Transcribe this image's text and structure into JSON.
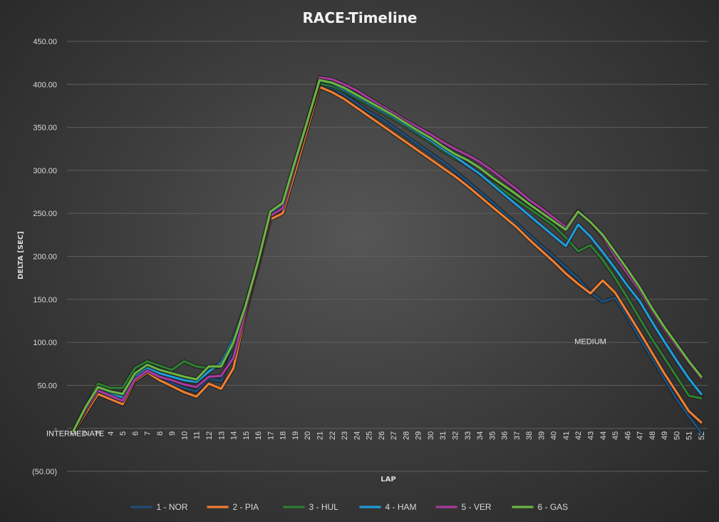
{
  "chart_data": {
    "type": "line",
    "title": "RACE-Timeline",
    "xlabel": "LAP",
    "ylabel": "DELTA [SEC]",
    "ylim": [
      -50,
      450
    ],
    "y_tick_labels": [
      "(50.00)",
      "-",
      "50.00",
      "100.00",
      "150.00",
      "200.00",
      "250.00",
      "300.00",
      "350.00",
      "400.00",
      "450.00"
    ],
    "categories": [
      "1",
      "2",
      "3",
      "4",
      "5",
      "6",
      "7",
      "8",
      "9",
      "10",
      "11",
      "12",
      "13",
      "14",
      "15",
      "16",
      "17",
      "18",
      "19",
      "20",
      "21",
      "22",
      "23",
      "24",
      "25",
      "26",
      "27",
      "28",
      "29",
      "30",
      "31",
      "32",
      "33",
      "34",
      "35",
      "36",
      "37",
      "38",
      "39",
      "40",
      "41",
      "42",
      "43",
      "44",
      "45",
      "46",
      "47",
      "48",
      "49",
      "50",
      "51",
      "52"
    ],
    "grid": true,
    "legend_position": "bottom",
    "annotations": [
      {
        "text": "INTERMEDIATE",
        "x": "1",
        "y": 0
      },
      {
        "text": "MEDIUM",
        "x": "43",
        "y": 160
      }
    ],
    "series": [
      {
        "name": "1 - NOR",
        "color": "#1f4e79",
        "values": [
          -5,
          18,
          40,
          35,
          28,
          55,
          65,
          58,
          52,
          47,
          43,
          58,
          55,
          92,
          140,
          192,
          248,
          256,
          302,
          350,
          399,
          396,
          388,
          378,
          368,
          360,
          350,
          340,
          330,
          320,
          310,
          299,
          287,
          275,
          263,
          250,
          238,
          225,
          212,
          200,
          187,
          174,
          158,
          147,
          152,
          130,
          105,
          82,
          58,
          34,
          14,
          -5
        ]
      },
      {
        "name": "2 - PIA",
        "color": "#ed7d31",
        "values": [
          -5,
          18,
          40,
          34,
          28,
          55,
          65,
          56,
          49,
          42,
          37,
          52,
          46,
          70,
          135,
          188,
          243,
          250,
          298,
          348,
          397,
          391,
          383,
          373,
          363,
          353,
          343,
          333,
          323,
          313,
          303,
          293,
          282,
          270,
          258,
          246,
          234,
          220,
          207,
          194,
          180,
          168,
          157,
          172,
          158,
          135,
          112,
          88,
          64,
          42,
          20,
          7
        ]
      },
      {
        "name": "3 - HUL",
        "color": "#2e7d32",
        "values": [
          -3,
          25,
          52,
          47,
          47,
          70,
          78,
          73,
          68,
          78,
          72,
          70,
          72,
          96,
          140,
          193,
          250,
          260,
          308,
          355,
          401,
          398,
          392,
          384,
          376,
          368,
          360,
          351,
          342,
          333,
          323,
          314,
          306,
          296,
          286,
          276,
          266,
          256,
          246,
          236,
          222,
          206,
          213,
          196,
          175,
          152,
          128,
          104,
          82,
          60,
          38,
          35
        ]
      },
      {
        "name": "4 - HAM",
        "color": "#1e9bd7",
        "values": [
          -3,
          22,
          46,
          40,
          36,
          60,
          70,
          64,
          60,
          56,
          54,
          66,
          76,
          104,
          144,
          193,
          250,
          260,
          309,
          356,
          404,
          401,
          394,
          386,
          378,
          370,
          362,
          353,
          344,
          335,
          325,
          316,
          306,
          296,
          284,
          272,
          260,
          248,
          236,
          224,
          212,
          237,
          223,
          205,
          186,
          166,
          148,
          124,
          101,
          79,
          58,
          40
        ]
      },
      {
        "name": "5 - VER",
        "color": "#a63a9e",
        "values": [
          -3,
          22,
          44,
          38,
          32,
          57,
          67,
          60,
          56,
          51,
          48,
          60,
          61,
          82,
          138,
          192,
          247,
          256,
          306,
          355,
          408,
          406,
          400,
          393,
          384,
          375,
          367,
          358,
          350,
          342,
          333,
          325,
          318,
          310,
          300,
          289,
          278,
          266,
          256,
          245,
          234,
          253,
          240,
          223,
          200,
          180,
          160,
          137,
          115,
          95,
          76,
          58
        ]
      },
      {
        "name": "6 - GAS",
        "color": "#6ab344",
        "values": [
          -3,
          25,
          48,
          43,
          40,
          64,
          74,
          68,
          64,
          60,
          57,
          72,
          72,
          100,
          143,
          194,
          252,
          262,
          310,
          357,
          405,
          402,
          396,
          388,
          380,
          372,
          364,
          355,
          346,
          338,
          328,
          319,
          312,
          303,
          292,
          282,
          272,
          261,
          251,
          241,
          231,
          252,
          240,
          225,
          205,
          185,
          164,
          140,
          118,
          98,
          78,
          60
        ]
      }
    ]
  }
}
